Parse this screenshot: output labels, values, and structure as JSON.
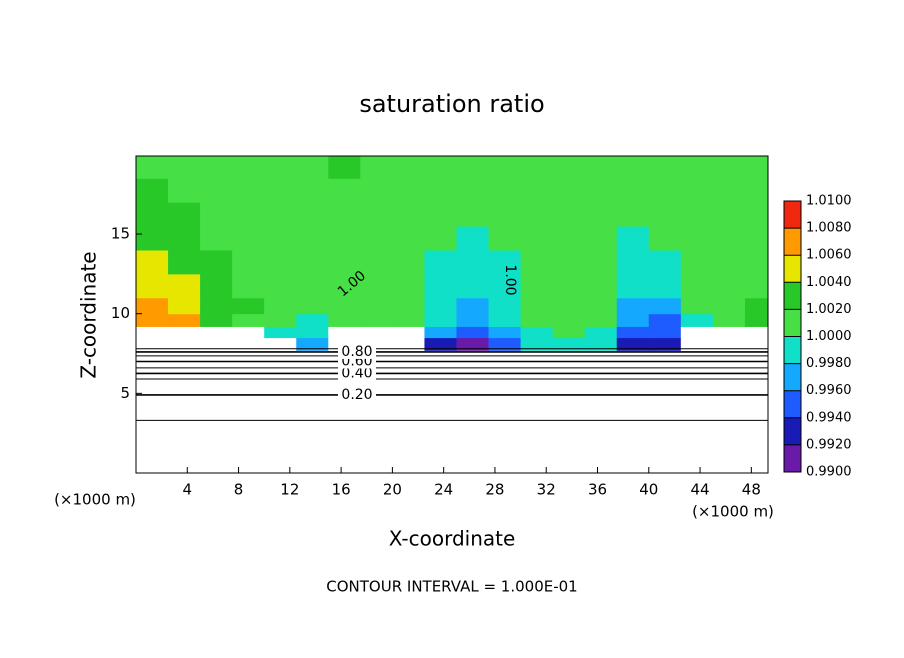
{
  "chart_data": {
    "type": "contour",
    "title": "saturation ratio",
    "xlabel": "X-coordinate",
    "ylabel": "Z-coordinate",
    "x_unit": "(×1000 m)",
    "footer": "CONTOUR INTERVAL = 1.000E-01",
    "xlim": [
      0,
      49.3
    ],
    "ylim": [
      0,
      19.9
    ],
    "xticks": [
      4,
      8,
      12,
      16,
      20,
      24,
      28,
      32,
      36,
      40,
      44,
      48
    ],
    "yticks": [
      5,
      10,
      15
    ],
    "xbins": [
      0,
      2.5,
      5,
      7.5,
      10,
      12.5,
      15,
      17.5,
      20,
      22.5,
      25,
      27.5,
      30,
      32.5,
      35,
      37.5,
      40,
      42.5,
      45,
      47.5,
      49.3
    ],
    "zbins": [
      7.7,
      8.5,
      9.2,
      10,
      11,
      12.5,
      14,
      15.5,
      17,
      18.5,
      19.9
    ],
    "z": [
      [
        0.98,
        0.98,
        0.98,
        0.98,
        0.98,
        0.997,
        0.98,
        0.98,
        0.98,
        0.993,
        0.991,
        0.995,
        0.999,
        0.9995,
        0.999,
        0.993,
        0.992,
        0.98,
        0.98,
        0.98
      ],
      [
        0.98,
        0.98,
        0.98,
        0.98,
        0.999,
        0.998,
        0.98,
        0.98,
        0.98,
        0.996,
        0.994,
        0.997,
        0.9995,
        1.0005,
        0.9995,
        0.995,
        0.994,
        0.98,
        0.98,
        0.98
      ],
      [
        1.007,
        1.006,
        1.003,
        1.0015,
        1.0005,
        0.9995,
        1.0005,
        1.0005,
        1.0005,
        0.998,
        0.996,
        0.998,
        1.0005,
        1.0005,
        1.0005,
        0.996,
        0.995,
        0.9995,
        1.001,
        1.002
      ],
      [
        1.007,
        1.005,
        1.003,
        1.002,
        1.001,
        1.0005,
        1.0005,
        1.0005,
        1.0005,
        0.9985,
        0.997,
        0.9985,
        1.0005,
        1.0005,
        1.0005,
        0.997,
        0.997,
        1.0005,
        1.001,
        1.002
      ],
      [
        1.005,
        1.004,
        1.0025,
        1.0015,
        1.001,
        1.0005,
        1.0005,
        1.0005,
        1.0005,
        0.9995,
        0.998,
        0.9995,
        1.0005,
        1.0005,
        1.0005,
        0.998,
        0.9985,
        1.0005,
        1.0012,
        1.0018
      ],
      [
        1.004,
        1.003,
        1.002,
        1.0012,
        1.001,
        1.0005,
        1.0005,
        1.0005,
        1.0005,
        0.9995,
        0.9985,
        0.9995,
        1.0005,
        1.0005,
        1.0005,
        0.9985,
        0.9995,
        1.0005,
        1.0012,
        1.0015
      ],
      [
        1.003,
        1.0025,
        1.0015,
        1.001,
        1.0005,
        1.0005,
        1.0005,
        1.0005,
        1.0005,
        1.0005,
        0.9995,
        1.0005,
        1.0005,
        1.0005,
        1.0005,
        0.9995,
        1.0005,
        1.0005,
        1.001,
        1.0012
      ],
      [
        1.0025,
        1.002,
        1.0012,
        1.001,
        1.0005,
        1.0005,
        1.0005,
        1.0005,
        1.0005,
        1.0005,
        1.0005,
        1.0005,
        1.0005,
        1.0005,
        1.0005,
        1.0005,
        1.0005,
        1.0005,
        1.001,
        1.001
      ],
      [
        1.002,
        1.0015,
        1.001,
        1.0005,
        1.0005,
        1.0005,
        1.0015,
        1.001,
        1.0005,
        1.0005,
        1.0005,
        1.0005,
        1.0005,
        1.0005,
        1.0005,
        1.0005,
        1.0005,
        1.0005,
        1.0008,
        1.001
      ],
      [
        1.0015,
        1.001,
        1.0005,
        1.0005,
        1.0005,
        1.0005,
        1.002,
        1.001,
        1.0005,
        1.0005,
        1.0005,
        1.0005,
        1.0005,
        1.0005,
        1.0005,
        1.0005,
        1.0005,
        1.0005,
        1.0008,
        1.001
      ]
    ],
    "colorbar_ticks": [
      {
        "value": 0.99,
        "label": "0.9900"
      },
      {
        "value": 0.992,
        "label": "0.9920"
      },
      {
        "value": 0.994,
        "label": "0.9940"
      },
      {
        "value": 0.996,
        "label": "0.9960"
      },
      {
        "value": 0.998,
        "label": "0.9980"
      },
      {
        "value": 1.0,
        "label": "1.0000"
      },
      {
        "value": 1.002,
        "label": "1.0020"
      },
      {
        "value": 1.004,
        "label": "1.0040"
      },
      {
        "value": 1.006,
        "label": "1.0060"
      },
      {
        "value": 1.008,
        "label": "1.0080"
      },
      {
        "value": 1.01,
        "label": "1.0100"
      }
    ],
    "colors": [
      "#6a1aa8",
      "#1a1ab4",
      "#1e5cff",
      "#14a8ff",
      "#10e0c8",
      "#46e046",
      "#28c828",
      "#e6e600",
      "#ff9a00",
      "#f02810",
      "#f4a8a8"
    ],
    "contours": [
      {
        "level": 0.1,
        "z": 3.3
      },
      {
        "level": 0.2,
        "z": 4.9,
        "label": "0.20"
      },
      {
        "level": 0.3,
        "z": 5.9
      },
      {
        "level": 0.4,
        "z": 6.25,
        "label": "0.40"
      },
      {
        "level": 0.5,
        "z": 6.6
      },
      {
        "level": 0.6,
        "z": 7.0,
        "label": "0.60"
      },
      {
        "level": 0.7,
        "z": 7.35
      },
      {
        "level": 0.8,
        "z": 7.6,
        "label": "0.80"
      },
      {
        "level": 0.9,
        "z": 7.8
      },
      {
        "level": 1.0,
        "label": "1.00"
      }
    ]
  }
}
